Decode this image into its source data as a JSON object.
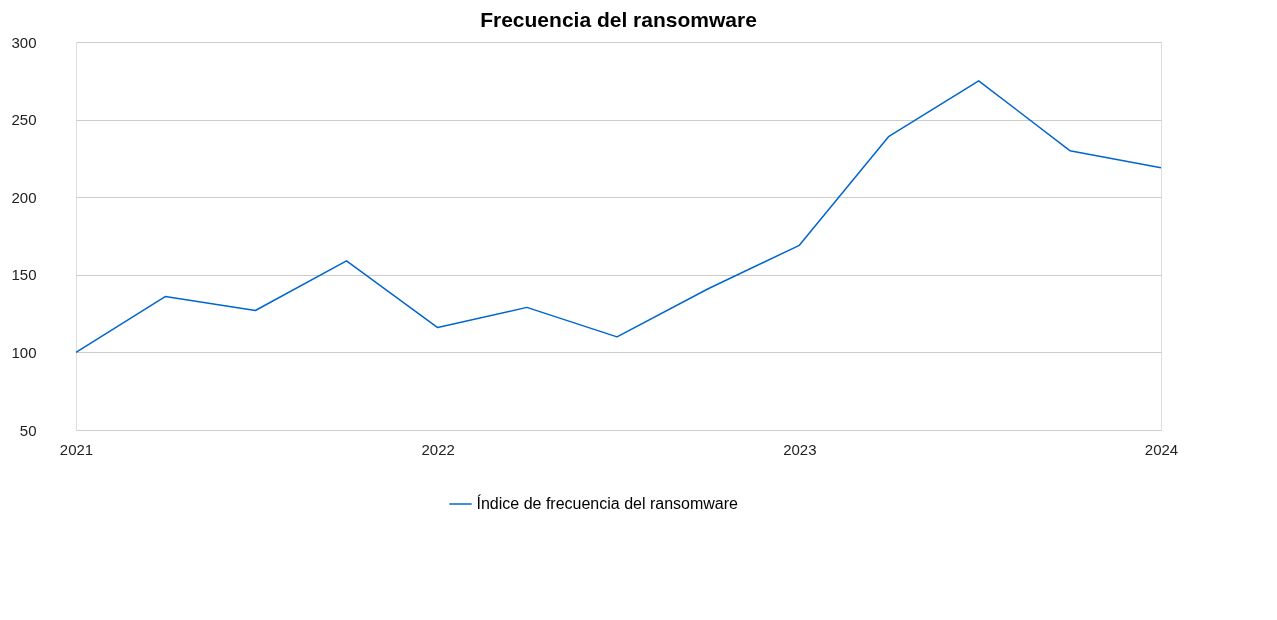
{
  "chart_data": {
    "type": "line",
    "title": "Frecuencia del ransomware",
    "x": [
      "2021-01",
      "2021-04",
      "2021-07",
      "2021-10",
      "2022-01",
      "2022-04",
      "2022-07",
      "2022-10",
      "2023-01",
      "2023-04",
      "2023-07",
      "2023-10",
      "2024-01"
    ],
    "series": [
      {
        "name": "Índice de frecuencia del ransomware",
        "color": "#0066cc",
        "values": [
          100,
          136,
          127,
          159,
          116,
          129,
          110,
          141,
          169,
          239,
          275,
          230,
          219
        ]
      }
    ],
    "xlim": [
      "2021-01",
      "2024-01"
    ],
    "xticks": [
      "2021",
      "2022",
      "2023",
      "2024"
    ],
    "ylim": [
      50,
      300
    ],
    "yticks": [
      50,
      100,
      150,
      200,
      250,
      300
    ],
    "grid": "y",
    "legend": "bottom",
    "marker": "none",
    "line_style": "solid"
  }
}
